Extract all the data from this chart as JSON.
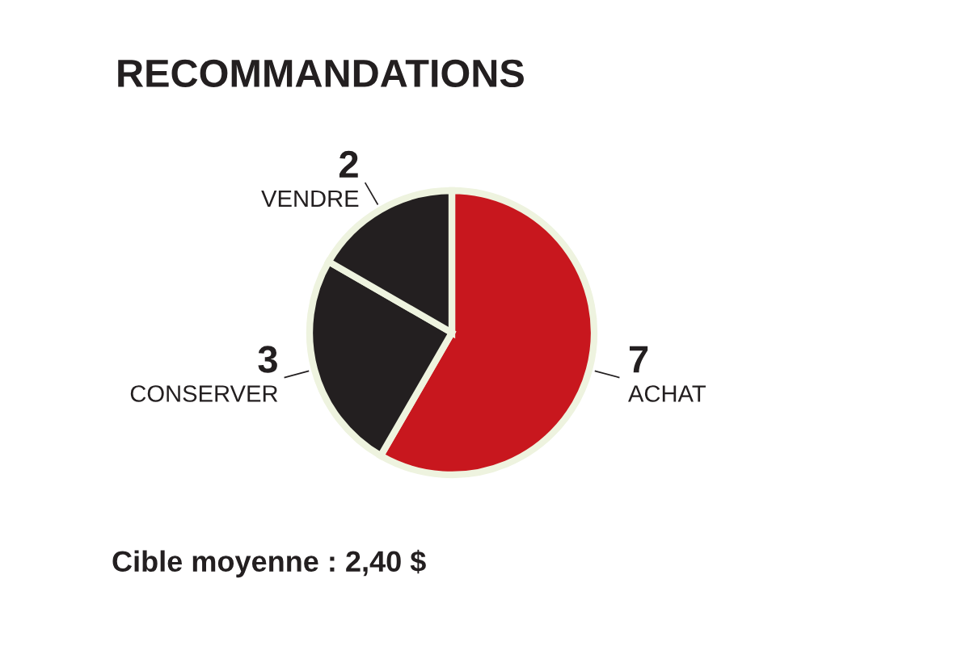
{
  "chart_data": {
    "type": "pie",
    "title": "RECOMMANDATIONS",
    "categories": [
      "ACHAT",
      "CONSERVER",
      "VENDRE"
    ],
    "values": [
      7,
      3,
      2
    ],
    "colors": [
      "#c8171e",
      "#231f20",
      "#231f20"
    ],
    "data_labels": true,
    "annotations": [
      "Cible moyenne : 2,40 $"
    ]
  }
}
